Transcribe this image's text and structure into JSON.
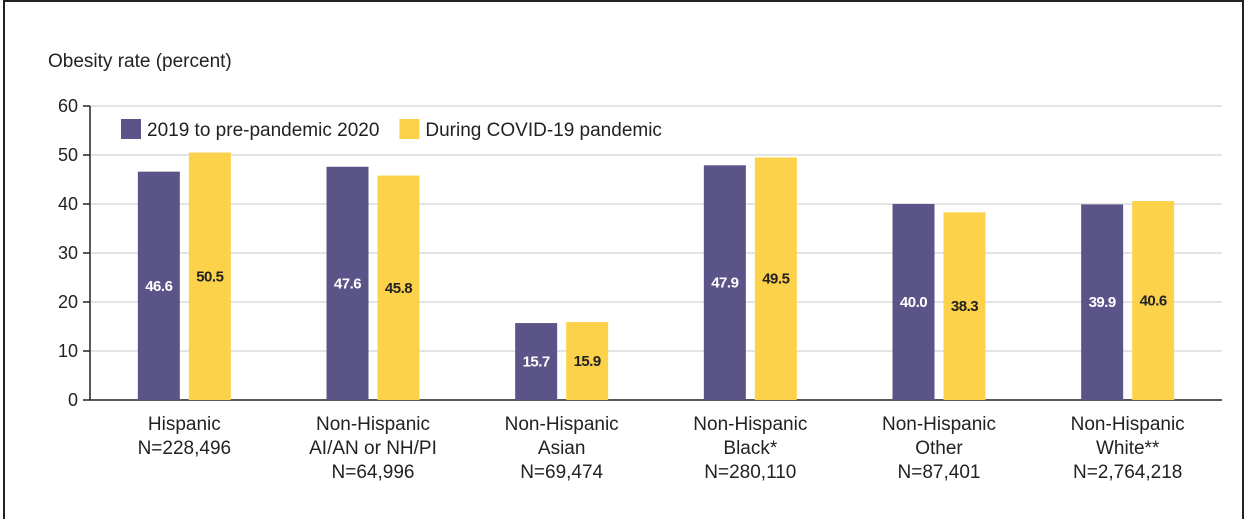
{
  "chart_data": {
    "type": "bar",
    "ylabel": "Obesity rate (percent)",
    "ylim": [
      0,
      60
    ],
    "yticks": [
      0,
      10,
      20,
      30,
      40,
      50,
      60
    ],
    "grid": true,
    "legend_position": "top-left",
    "categories": [
      [
        "Hispanic",
        "N=228,496"
      ],
      [
        "Non-Hispanic",
        "AI/AN or NH/PI",
        "N=64,996"
      ],
      [
        "Non-Hispanic",
        "Asian",
        "N=69,474"
      ],
      [
        "Non-Hispanic",
        "Black*",
        "N=280,110"
      ],
      [
        "Non-Hispanic",
        "Other",
        "N=87,401"
      ],
      [
        "Non-Hispanic",
        "White**",
        "N=2,764,218"
      ]
    ],
    "series": [
      {
        "name": "2019 to pre-pandemic 2020",
        "color": "#5b5488",
        "label_color": "#ffffff",
        "values": [
          46.6,
          47.6,
          15.7,
          47.9,
          40.0,
          39.9
        ],
        "labels": [
          "46.6",
          "47.6",
          "15.7",
          "47.9",
          "40.0",
          "39.9"
        ]
      },
      {
        "name": "During COVID-19 pandemic",
        "color": "#fdd24b",
        "label_color": "#222222",
        "values": [
          50.5,
          45.8,
          15.9,
          49.5,
          38.3,
          40.6
        ],
        "labels": [
          "50.5",
          "45.8",
          "15.9",
          "49.5",
          "38.3",
          "40.6"
        ]
      }
    ]
  }
}
